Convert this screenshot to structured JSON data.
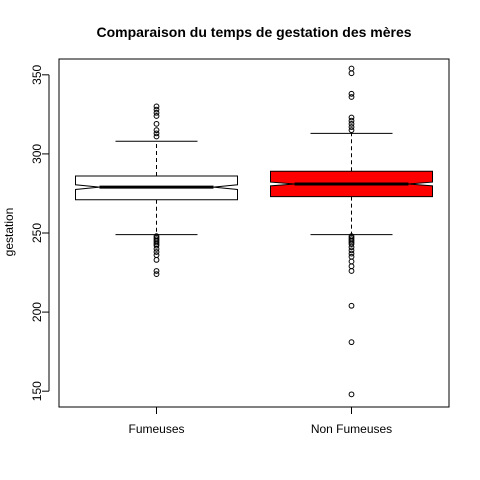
{
  "chart_data": {
    "type": "boxplot",
    "title": "Comparaison du temps de gestation des mères",
    "xlabel": "",
    "ylabel": "gestation",
    "ylim": [
      140,
      360
    ],
    "yticks": [
      150,
      200,
      250,
      300,
      350
    ],
    "notched": true,
    "grid": false,
    "categories": [
      "Fumeuses",
      "Non Fumeuses"
    ],
    "boxes": [
      {
        "category": "Fumeuses",
        "fill": "#ffffff",
        "q1": 271,
        "median": 279,
        "q3": 286,
        "whisker_low": 249,
        "whisker_high": 308,
        "notch_low": 277.5,
        "notch_high": 280.5,
        "outliers": [
          224,
          226,
          233,
          236,
          238,
          240,
          242,
          243,
          244,
          245,
          246,
          247,
          248,
          311,
          313,
          315,
          319,
          324,
          326,
          328,
          330
        ]
      },
      {
        "category": "Non Fumeuses",
        "fill": "#ff0000",
        "q1": 273,
        "median": 281,
        "q3": 289,
        "whisker_low": 249,
        "whisker_high": 313,
        "notch_low": 279.8,
        "notch_high": 282.2,
        "outliers": [
          148,
          181,
          204,
          226,
          229,
          232,
          235,
          237,
          239,
          241,
          243,
          244,
          245,
          246,
          247,
          248,
          315,
          317,
          319,
          321,
          323,
          336,
          338,
          351,
          354
        ]
      }
    ]
  }
}
